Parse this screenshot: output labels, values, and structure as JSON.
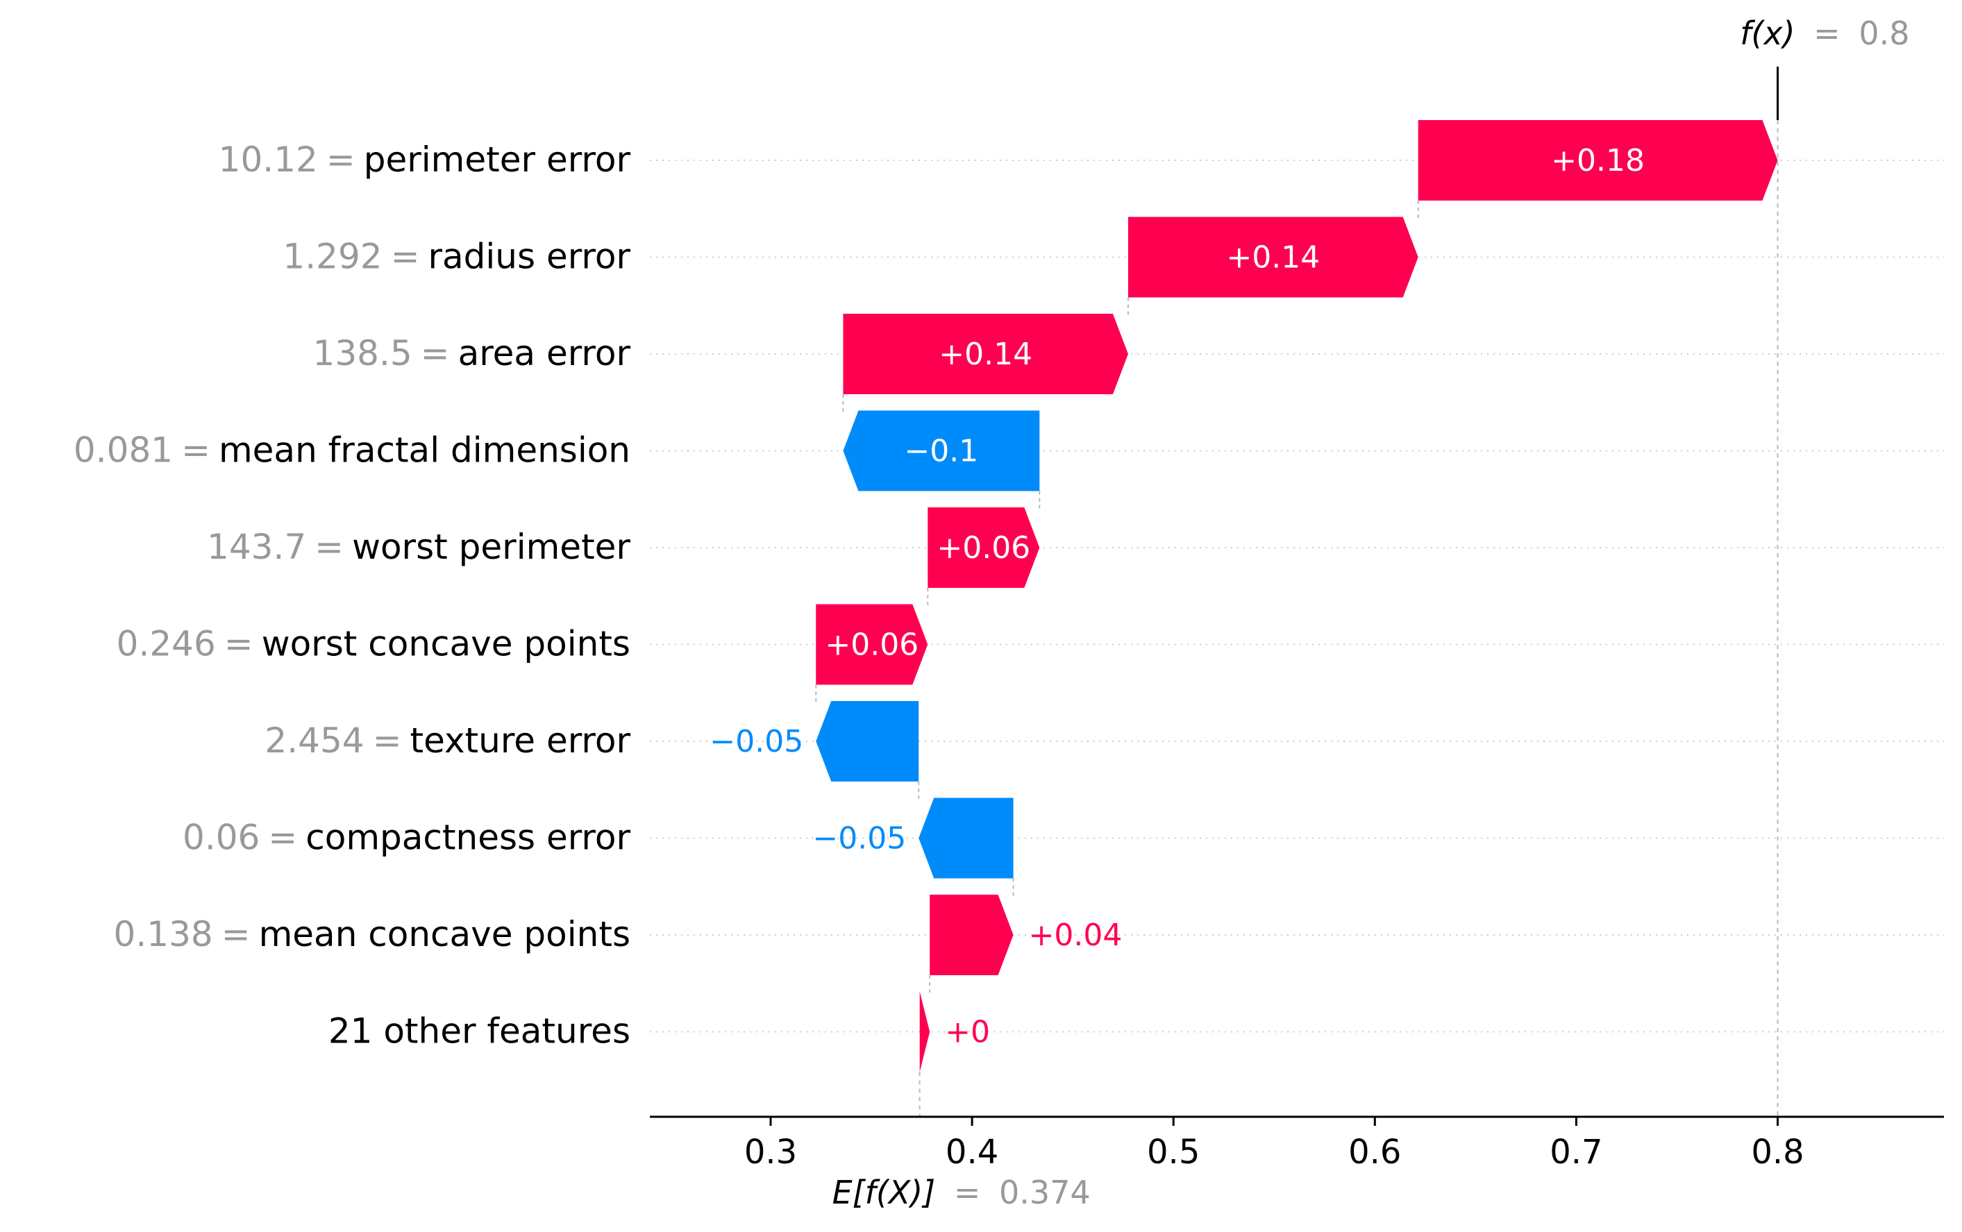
{
  "chart_data": {
    "type": "waterfall",
    "title": "",
    "xlabel": "",
    "ylabel": "",
    "xlim": [
      0.24,
      0.88
    ],
    "xticks": [
      "0.3",
      "0.4",
      "0.5",
      "0.6",
      "0.7",
      "0.8"
    ],
    "xtick_values": [
      0.3,
      0.4,
      0.5,
      0.6,
      0.7,
      0.8
    ],
    "base_value": 0.374,
    "base_label": {
      "fn": "E[f(X)]",
      "eq": "=",
      "value": "0.374"
    },
    "output_value": 0.8,
    "output_label": {
      "fn": "f(x)",
      "eq": "=",
      "value": "0.8"
    },
    "grid": "horizontal dotted",
    "colors": {
      "positive": "#ff0051",
      "negative": "#008bfb",
      "value_gray": "#999999",
      "text": "#000000"
    },
    "features": [
      {
        "value": "10.12",
        "eq": "=",
        "name": "perimeter error",
        "start": 0.6215,
        "end": 0.8,
        "label": "+0.18"
      },
      {
        "value": "1.292",
        "eq": "=",
        "name": "radius error",
        "start": 0.4775,
        "end": 0.6215,
        "label": "+0.14"
      },
      {
        "value": "138.5",
        "eq": "=",
        "name": "area error",
        "start": 0.336,
        "end": 0.4775,
        "label": "+0.14"
      },
      {
        "value": "0.081",
        "eq": "=",
        "name": "mean fractal dimension",
        "start": 0.4335,
        "end": 0.336,
        "label": "−0.1"
      },
      {
        "value": "143.7",
        "eq": "=",
        "name": "worst perimeter",
        "start": 0.378,
        "end": 0.4335,
        "label": "+0.06"
      },
      {
        "value": "0.246",
        "eq": "=",
        "name": "worst concave points",
        "start": 0.3225,
        "end": 0.378,
        "label": "+0.06"
      },
      {
        "value": "2.454",
        "eq": "=",
        "name": "texture error",
        "start": 0.3735,
        "end": 0.3225,
        "label": "−0.05"
      },
      {
        "value": "0.06",
        "eq": "=",
        "name": "compactness error",
        "start": 0.4205,
        "end": 0.3735,
        "label": "−0.05"
      },
      {
        "value": "0.138",
        "eq": "=",
        "name": "mean concave points",
        "start": 0.379,
        "end": 0.4205,
        "label": "+0.04"
      },
      {
        "value": "",
        "eq": "",
        "name": "21 other features",
        "start": 0.374,
        "end": 0.379,
        "label": "+0"
      }
    ]
  }
}
